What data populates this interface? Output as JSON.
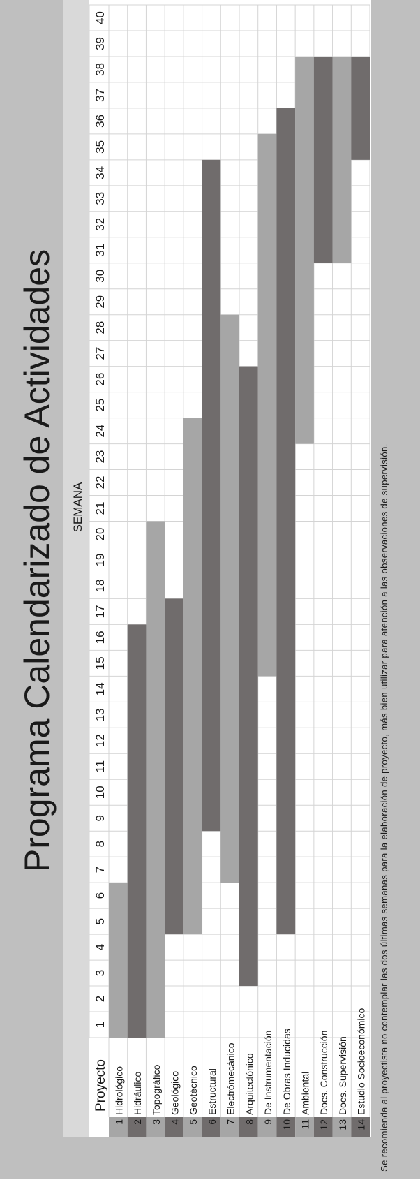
{
  "chart_data": {
    "type": "gantt",
    "title": "Programa Calendarizado de Actividades",
    "week_header": "SEMANA",
    "project_header": "Proyecto",
    "weeks": [
      "1",
      "2",
      "3",
      "4",
      "5",
      "6",
      "7",
      "8",
      "9",
      "10",
      "11",
      "12",
      "13",
      "14",
      "15",
      "16",
      "17",
      "18",
      "19",
      "20",
      "21",
      "22",
      "23",
      "24",
      "25",
      "26",
      "27",
      "28",
      "29",
      "30",
      "31",
      "32",
      "33",
      "34",
      "35",
      "36",
      "37",
      "38",
      "39",
      "40"
    ],
    "tasks": [
      {
        "num": "1",
        "name": "Hidrológico",
        "start": 1,
        "end": 6,
        "shade": "light"
      },
      {
        "num": "2",
        "name": "Hidráulico",
        "start": 1,
        "end": 16,
        "shade": "dark"
      },
      {
        "num": "3",
        "name": "Topográfico",
        "start": 1,
        "end": 20,
        "shade": "light"
      },
      {
        "num": "4",
        "name": "Geológico",
        "start": 5,
        "end": 17,
        "shade": "dark"
      },
      {
        "num": "5",
        "name": "Geotécnico",
        "start": 5,
        "end": 24,
        "shade": "light"
      },
      {
        "num": "6",
        "name": "Estructural",
        "start": 9,
        "end": 34,
        "shade": "dark"
      },
      {
        "num": "7",
        "name": "Electrómecánico",
        "start": 7,
        "end": 28,
        "shade": "light"
      },
      {
        "num": "8",
        "name": "Arquitectónico",
        "start": 3,
        "end": 26,
        "shade": "dark"
      },
      {
        "num": "9",
        "name": "De Instrumentación",
        "start": 15,
        "end": 35,
        "shade": "light"
      },
      {
        "num": "10",
        "name": "De Obras Inducidas",
        "start": 5,
        "end": 36,
        "shade": "dark"
      },
      {
        "num": "11",
        "name": "Ambiental",
        "start": 24,
        "end": 38,
        "shade": "light"
      },
      {
        "num": "12",
        "name": "Docs. Construcción",
        "start": 31,
        "end": 38,
        "shade": "dark"
      },
      {
        "num": "13",
        "name": "Docs. Supervisión",
        "start": 31,
        "end": 38,
        "shade": "light"
      },
      {
        "num": "14",
        "name": "Estudio Socioeconómico",
        "start": 35,
        "end": 38,
        "shade": "dark"
      }
    ],
    "footnote": "Se recomienda al proyectista no contemplar las dos últimas semanas para la elaboración de proyecto, más bien utilizar para atención a las observaciones de supervisión.",
    "colors": {
      "frame": "#bfbfbf",
      "header_band": "#d9d9d9",
      "grid": "#d4d4d4",
      "bar_light": "#a6a6a6",
      "bar_dark": "#706c6c",
      "text": "#1a1a1a"
    }
  }
}
